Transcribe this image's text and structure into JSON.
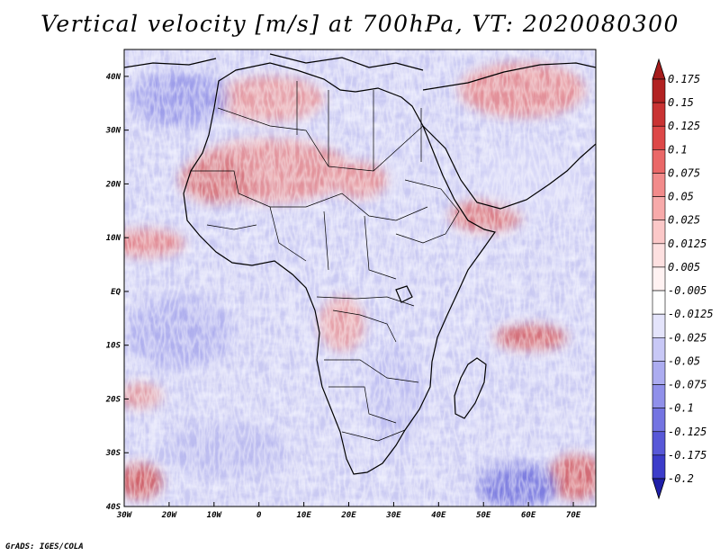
{
  "title": "Vertical velocity [m/s] at 700hPa, VT: 2020080300",
  "credit": "GrADS: IGES/COLA",
  "map": {
    "projection": "latlon",
    "lon_range": [
      -30,
      75
    ],
    "lat_range": [
      -40,
      45
    ],
    "x_ticks": [
      {
        "lon": -30,
        "label": "30W"
      },
      {
        "lon": -20,
        "label": "20W"
      },
      {
        "lon": -10,
        "label": "10W"
      },
      {
        "lon": 0,
        "label": "0"
      },
      {
        "lon": 10,
        "label": "10E"
      },
      {
        "lon": 20,
        "label": "20E"
      },
      {
        "lon": 30,
        "label": "30E"
      },
      {
        "lon": 40,
        "label": "40E"
      },
      {
        "lon": 50,
        "label": "50E"
      },
      {
        "lon": 60,
        "label": "60E"
      },
      {
        "lon": 70,
        "label": "70E"
      }
    ],
    "y_ticks": [
      {
        "lat": 40,
        "label": "40N"
      },
      {
        "lat": 30,
        "label": "30N"
      },
      {
        "lat": 20,
        "label": "20N"
      },
      {
        "lat": 10,
        "label": "10N"
      },
      {
        "lat": 0,
        "label": "EQ"
      },
      {
        "lat": -10,
        "label": "10S"
      },
      {
        "lat": -20,
        "label": "20S"
      },
      {
        "lat": -30,
        "label": "30S"
      },
      {
        "lat": -40,
        "label": "40S"
      }
    ]
  },
  "colorbar": {
    "levels": [
      {
        "label": "0.175",
        "color": "#b22222"
      },
      {
        "label": "0.15",
        "color": "#c93333"
      },
      {
        "label": "0.125",
        "color": "#dd4848"
      },
      {
        "label": "0.1",
        "color": "#ea6868"
      },
      {
        "label": "0.075",
        "color": "#f28b8b"
      },
      {
        "label": "0.05",
        "color": "#f7aaaa"
      },
      {
        "label": "0.025",
        "color": "#fbc8c8"
      },
      {
        "label": "0.0125",
        "color": "#fde0e0"
      },
      {
        "label": "0.005",
        "color": "#fff2f2"
      },
      {
        "label": "-0.005",
        "color": "#ffffff"
      },
      {
        "label": "-0.0125",
        "color": "#e4e4fb"
      },
      {
        "label": "-0.025",
        "color": "#c8c8f6"
      },
      {
        "label": "-0.05",
        "color": "#acacf0"
      },
      {
        "label": "-0.075",
        "color": "#9090ea"
      },
      {
        "label": "-0.1",
        "color": "#7474e2"
      },
      {
        "label": "-0.125",
        "color": "#5858d8"
      },
      {
        "label": "-0.175",
        "color": "#3c3cca"
      },
      {
        "label": "-0.2",
        "color": "#2a2ab8"
      }
    ],
    "top_tip_color": "#a51c1c",
    "bottom_tip_color": "#1f1fa8"
  }
}
